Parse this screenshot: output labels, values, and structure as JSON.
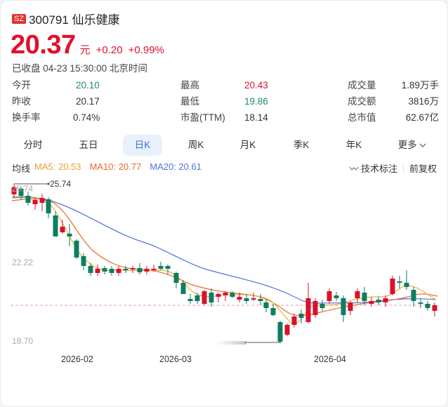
{
  "header": {
    "exchange_badge": "SZ",
    "code": "300791",
    "name": "仙乐健康",
    "title": "300791 仙乐健康",
    "price": "20.37",
    "unit": "元",
    "change": "+0.20",
    "change_pct": "+0.99%",
    "status": "已收盘 04-23 15:30:00 北京时间"
  },
  "stats": [
    {
      "label": "今开",
      "value": "20.10",
      "color": "green"
    },
    {
      "label": "最高",
      "value": "20.43",
      "color": "red"
    },
    {
      "label": "成交量",
      "value": "1.89万手",
      "color": "dark"
    },
    {
      "label": "昨收",
      "value": "20.17",
      "color": "dark"
    },
    {
      "label": "最低",
      "value": "19.86",
      "color": "green"
    },
    {
      "label": "成交额",
      "value": "3816万",
      "color": "dark"
    },
    {
      "label": "换手率",
      "value": "0.74%",
      "color": "dark"
    },
    {
      "label": "市盈(TTM)",
      "value": "18.14",
      "color": "dark"
    },
    {
      "label": "总市值",
      "value": "62.67亿",
      "color": "dark"
    }
  ],
  "tabs": [
    {
      "label": "分时",
      "active": false
    },
    {
      "label": "五日",
      "active": false
    },
    {
      "label": "日K",
      "active": true
    },
    {
      "label": "周K",
      "active": false
    },
    {
      "label": "月K",
      "active": false
    },
    {
      "label": "季K",
      "active": false
    },
    {
      "label": "年K",
      "active": false
    },
    {
      "label": "更多",
      "active": false
    }
  ],
  "ma": {
    "label": "均线",
    "ma5": "MA5: 20.53",
    "ma10": "MA10: 20.77",
    "ma20": "MA20: 20.61"
  },
  "tools": {
    "tech_label": "技术标注",
    "adjust_label": "前复权"
  },
  "chart": {
    "y_labels": [
      "25.74",
      "22.22",
      "18.70"
    ],
    "x_labels": [
      "2026-02",
      "2026-03",
      "2026-04"
    ],
    "max_marker": "25.74",
    "colors": {
      "up": "#d9112d",
      "down": "#0e7d62",
      "ma5": "#e9b23c",
      "ma10": "#ea6a2b",
      "ma20": "#4e73d6",
      "prev_close": "#e9a0a0"
    }
  }
}
